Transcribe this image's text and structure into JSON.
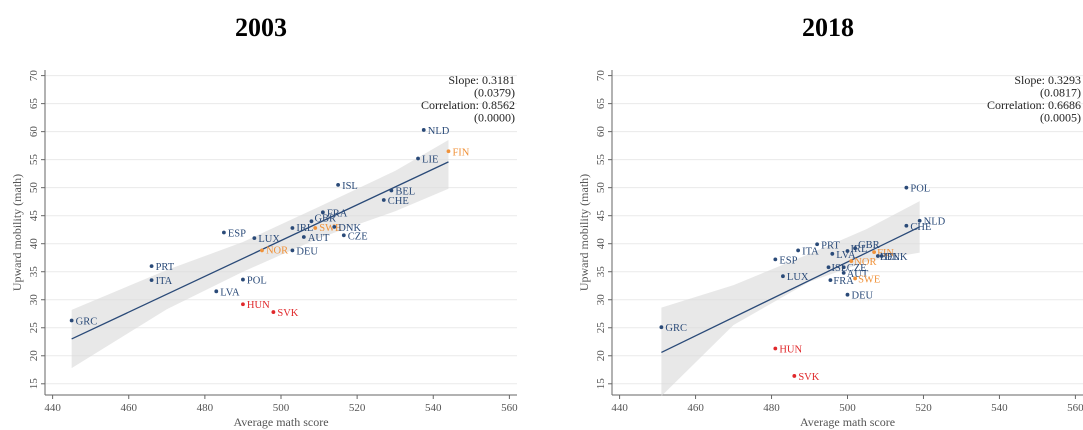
{
  "chart_data": [
    {
      "type": "scatter",
      "title": "2003",
      "xlabel": "Average math score",
      "ylabel": "Upward mobility (math)",
      "xlim": [
        438,
        562
      ],
      "ylim": [
        13,
        71
      ],
      "xticks": [
        440,
        460,
        480,
        500,
        520,
        540,
        560
      ],
      "yticks": [
        15,
        20,
        25,
        30,
        35,
        40,
        45,
        50,
        55,
        60,
        65,
        70
      ],
      "grid": true,
      "stats": [
        "Slope: 0.3181",
        "(0.0379)",
        "Correlation: 0.8562",
        "(0.0000)"
      ],
      "fit_line": {
        "x": [
          445,
          544
        ],
        "y": [
          23.0,
          54.6
        ]
      },
      "confidence_band": {
        "x": [
          445,
          470,
          490,
          510,
          530,
          544
        ],
        "lower": [
          17.8,
          28.3,
          35.0,
          41.0,
          45.8,
          49.8
        ],
        "upper": [
          28.2,
          35.3,
          40.3,
          46.6,
          53.0,
          58.5
        ]
      },
      "colors": {
        "default": "#2a4a78",
        "nordic": "#f0923a",
        "highlight": "#e0282b"
      },
      "points": [
        {
          "label": "NLD",
          "x": 537.5,
          "y": 60.3,
          "group": "default"
        },
        {
          "label": "FIN",
          "x": 544.0,
          "y": 56.5,
          "group": "nordic"
        },
        {
          "label": "LIE",
          "x": 536.0,
          "y": 55.2,
          "group": "default"
        },
        {
          "label": "ISL",
          "x": 515.0,
          "y": 50.5,
          "group": "default"
        },
        {
          "label": "BEL",
          "x": 529.0,
          "y": 49.5,
          "group": "default"
        },
        {
          "label": "CHE",
          "x": 527.0,
          "y": 47.8,
          "group": "default"
        },
        {
          "label": "FRA",
          "x": 511.0,
          "y": 45.6,
          "group": "default"
        },
        {
          "label": "GBR",
          "x": 508.0,
          "y": 44.0,
          "group": "default"
        },
        {
          "label": "IRL",
          "x": 503.0,
          "y": 42.8,
          "group": "default"
        },
        {
          "label": "SWE",
          "x": 509.0,
          "y": 42.8,
          "group": "nordic"
        },
        {
          "label": "DNK",
          "x": 514.0,
          "y": 43.0,
          "group": "default"
        },
        {
          "label": "AUT",
          "x": 506.0,
          "y": 41.2,
          "group": "default"
        },
        {
          "label": "CZE",
          "x": 516.5,
          "y": 41.5,
          "group": "default"
        },
        {
          "label": "ESP",
          "x": 485.0,
          "y": 42.0,
          "group": "default"
        },
        {
          "label": "LUX",
          "x": 493.0,
          "y": 41.0,
          "group": "default"
        },
        {
          "label": "NOR",
          "x": 495.0,
          "y": 38.8,
          "group": "nordic"
        },
        {
          "label": "DEU",
          "x": 503.0,
          "y": 38.8,
          "group": "default"
        },
        {
          "label": "PRT",
          "x": 466.0,
          "y": 36.0,
          "group": "default"
        },
        {
          "label": "ITA",
          "x": 466.0,
          "y": 33.5,
          "group": "default"
        },
        {
          "label": "POL",
          "x": 490.0,
          "y": 33.6,
          "group": "default"
        },
        {
          "label": "LVA",
          "x": 483.0,
          "y": 31.5,
          "group": "default"
        },
        {
          "label": "HUN",
          "x": 490.0,
          "y": 29.2,
          "group": "highlight"
        },
        {
          "label": "SVK",
          "x": 498.0,
          "y": 27.8,
          "group": "highlight"
        },
        {
          "label": "GRC",
          "x": 445.0,
          "y": 26.3,
          "group": "default"
        }
      ]
    },
    {
      "type": "scatter",
      "title": "2018",
      "xlabel": "Average math score",
      "ylabel": "Upward mobility (math)",
      "xlim": [
        438,
        562
      ],
      "ylim": [
        13,
        71
      ],
      "xticks": [
        440,
        460,
        480,
        500,
        520,
        540,
        560
      ],
      "yticks": [
        15,
        20,
        25,
        30,
        35,
        40,
        45,
        50,
        55,
        60,
        65,
        70
      ],
      "grid": true,
      "stats": [
        "Slope: 0.3293",
        "(0.0817)",
        "Correlation: 0.6686",
        "(0.0005)"
      ],
      "fit_line": {
        "x": [
          451,
          519
        ],
        "y": [
          20.6,
          43.0
        ]
      },
      "confidence_band": {
        "x": [
          451,
          470,
          490,
          505,
          519
        ],
        "lower": [
          12.8,
          25.5,
          33.2,
          36.8,
          38.4
        ],
        "upper": [
          28.6,
          32.6,
          38.2,
          42.6,
          47.6
        ]
      },
      "colors": {
        "default": "#2a4a78",
        "nordic": "#f0923a",
        "highlight": "#e0282b"
      },
      "points": [
        {
          "label": "POL",
          "x": 515.5,
          "y": 50.0,
          "group": "default"
        },
        {
          "label": "NLD",
          "x": 519.0,
          "y": 44.1,
          "group": "default"
        },
        {
          "label": "CHE",
          "x": 515.5,
          "y": 43.2,
          "group": "default"
        },
        {
          "label": "PRT",
          "x": 492.0,
          "y": 39.9,
          "group": "default"
        },
        {
          "label": "ITA",
          "x": 487.0,
          "y": 38.8,
          "group": "default"
        },
        {
          "label": "GBR",
          "x": 502.0,
          "y": 39.2,
          "group": "default"
        },
        {
          "label": "IRL",
          "x": 500.0,
          "y": 38.7,
          "group": "default"
        },
        {
          "label": "LVA",
          "x": 496.0,
          "y": 38.2,
          "group": "default"
        },
        {
          "label": "FIN",
          "x": 507.0,
          "y": 38.5,
          "group": "nordic"
        },
        {
          "label": "BEL",
          "x": 508.0,
          "y": 37.8,
          "group": "default"
        },
        {
          "label": "DNK",
          "x": 509.0,
          "y": 37.8,
          "group": "default"
        },
        {
          "label": "ESP",
          "x": 481.0,
          "y": 37.2,
          "group": "default"
        },
        {
          "label": "NOR",
          "x": 501.0,
          "y": 36.9,
          "group": "nordic"
        },
        {
          "label": "ISL",
          "x": 495.0,
          "y": 35.8,
          "group": "default"
        },
        {
          "label": "CZE",
          "x": 499.0,
          "y": 35.8,
          "group": "default"
        },
        {
          "label": "AUT",
          "x": 499.0,
          "y": 34.8,
          "group": "default"
        },
        {
          "label": "LUX",
          "x": 483.0,
          "y": 34.2,
          "group": "default"
        },
        {
          "label": "FRA",
          "x": 495.5,
          "y": 33.5,
          "group": "default"
        },
        {
          "label": "SWE",
          "x": 502.0,
          "y": 33.8,
          "group": "nordic"
        },
        {
          "label": "DEU",
          "x": 500.0,
          "y": 30.9,
          "group": "default"
        },
        {
          "label": "GRC",
          "x": 451.0,
          "y": 25.1,
          "group": "default"
        },
        {
          "label": "HUN",
          "x": 481.0,
          "y": 21.3,
          "group": "highlight"
        },
        {
          "label": "SVK",
          "x": 486.0,
          "y": 16.4,
          "group": "highlight"
        }
      ]
    }
  ]
}
